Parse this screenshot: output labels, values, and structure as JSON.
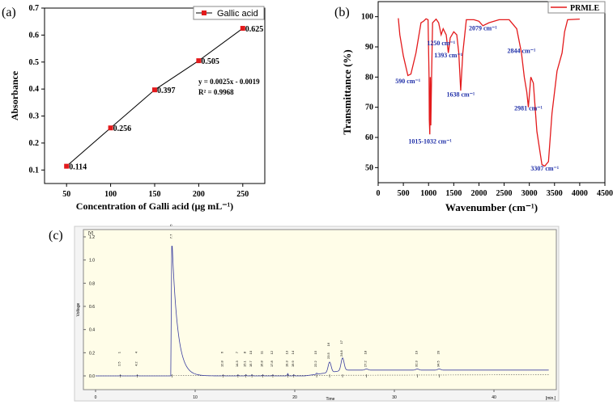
{
  "chart_data": [
    {
      "panel": "(a)",
      "type": "line",
      "xlabel": "Concentration of Galli acid (μg mL⁻¹)",
      "ylabel": "Absorbance",
      "x": [
        50,
        100,
        150,
        200,
        250
      ],
      "y": [
        0.114,
        0.256,
        0.397,
        0.505,
        0.625
      ],
      "data_labels": [
        "0.114",
        "0.256",
        "0.397",
        "0.505",
        "0.625"
      ],
      "series_name": "Gallic acid",
      "color": "#e31a1c",
      "legend": "top-right",
      "equation": "y = 0.0025x - 0.0019",
      "r2": "R² = 0.9968",
      "xlim": [
        25,
        275
      ],
      "ylim": [
        0.05,
        0.7
      ],
      "xticks": [
        "50",
        "100",
        "150",
        "200",
        "250"
      ],
      "yticks": [
        "0.1",
        "0.2",
        "0.3",
        "0.4",
        "0.5",
        "0.6",
        "0.7"
      ]
    },
    {
      "panel": "(b)",
      "type": "line",
      "xlabel": "Wavenumber (cm⁻¹)",
      "ylabel": "Transmittance (%)",
      "series_name": "PRMLE",
      "color": "#e31a1c",
      "legend": "top-right",
      "xlim": [
        0,
        4500
      ],
      "ylim": [
        45,
        105
      ],
      "xticks": [
        "0",
        "500",
        "1000",
        "1500",
        "2000",
        "2500",
        "3000",
        "3500",
        "4000",
        "4500"
      ],
      "yticks": [
        "50",
        "60",
        "70",
        "80",
        "90",
        "100"
      ],
      "points": [
        [
          400,
          99.5
        ],
        [
          430,
          94
        ],
        [
          500,
          87
        ],
        [
          590,
          80.5
        ],
        [
          650,
          81
        ],
        [
          750,
          88
        ],
        [
          850,
          98
        ],
        [
          900,
          98.5
        ],
        [
          950,
          99.3
        ],
        [
          990,
          99
        ],
        [
          1010,
          80
        ],
        [
          1015,
          66
        ],
        [
          1025,
          61
        ],
        [
          1035,
          80
        ],
        [
          1045,
          64
        ],
        [
          1060,
          80
        ],
        [
          1080,
          98
        ],
        [
          1150,
          99.2
        ],
        [
          1200,
          98
        ],
        [
          1250,
          94
        ],
        [
          1290,
          96
        ],
        [
          1350,
          94
        ],
        [
          1393,
          88
        ],
        [
          1430,
          93
        ],
        [
          1500,
          95
        ],
        [
          1560,
          94
        ],
        [
          1600,
          88
        ],
        [
          1638,
          75.5
        ],
        [
          1680,
          88
        ],
        [
          1750,
          99
        ],
        [
          1900,
          99
        ],
        [
          2000,
          98.5
        ],
        [
          2079,
          97
        ],
        [
          2200,
          98
        ],
        [
          2400,
          99
        ],
        [
          2600,
          99
        ],
        [
          2750,
          96
        ],
        [
          2844,
          88
        ],
        [
          2900,
          80
        ],
        [
          2950,
          75
        ],
        [
          2981,
          70
        ],
        [
          3030,
          80
        ],
        [
          3080,
          78
        ],
        [
          3150,
          62
        ],
        [
          3250,
          51
        ],
        [
          3307,
          50.5
        ],
        [
          3380,
          52
        ],
        [
          3450,
          68
        ],
        [
          3550,
          82
        ],
        [
          3650,
          88
        ],
        [
          3700,
          95
        ],
        [
          3760,
          99
        ],
        [
          4000,
          99.2
        ]
      ],
      "annotations": [
        {
          "text": "590 cm⁻¹",
          "x": 590,
          "y": 78
        },
        {
          "text": "1015-1032 cm⁻¹",
          "x": 1030,
          "y": 58
        },
        {
          "text": "1250 cm⁻¹",
          "x": 1250,
          "y": 90.5
        },
        {
          "text": "1393 cm⁻¹",
          "x": 1393,
          "y": 86.5
        },
        {
          "text": "1638 cm⁻¹",
          "x": 1638,
          "y": 73.5
        },
        {
          "text": "2079 cm⁻¹",
          "x": 2079,
          "y": 95.5
        },
        {
          "text": "2844 cm⁻¹",
          "x": 2844,
          "y": 88
        },
        {
          "text": "2981 cm⁻¹",
          "x": 2981,
          "y": 69
        },
        {
          "text": "3307 cm⁻¹",
          "x": 3307,
          "y": 49
        }
      ],
      "annotation_color": "#1f2fa8"
    },
    {
      "panel": "(c)",
      "type": "line",
      "xlabel": "Time",
      "ylabel": "Voltage",
      "yunit": "[V]",
      "xunit": "[min.]",
      "xlim": [
        -3,
        46
      ],
      "ylim": [
        -0.1,
        1.25
      ],
      "xticks": [
        "0",
        "10",
        "20",
        "30",
        "40"
      ],
      "yticks": [
        "0.0",
        "0.2",
        "0.4",
        "0.6",
        "0.8",
        "1.0",
        "1.2"
      ],
      "peaks": [
        {
          "rt": "2.5",
          "n": "1",
          "h": 0.005
        },
        {
          "rt": "4.2",
          "n": "4",
          "h": 0.005
        },
        {
          "rt": "7.7",
          "n": "5",
          "h": 1.12
        },
        {
          "rt": "12.8",
          "n": "6",
          "h": 0.005
        },
        {
          "rt": "14.3",
          "n": "7",
          "h": 0.008
        },
        {
          "rt": "15.1",
          "n": "8",
          "h": 0.01
        },
        {
          "rt": "15.7",
          "n": "10",
          "h": 0.01
        },
        {
          "rt": "16.8",
          "n": "11",
          "h": 0.008
        },
        {
          "rt": "17.8",
          "n": "12",
          "h": 0.008
        },
        {
          "rt": "19.3",
          "n": "13",
          "h": 0.02
        },
        {
          "rt": "19.9",
          "n": "14",
          "h": 0.01
        },
        {
          "rt": "22.2",
          "n": "15",
          "h": 0.01
        },
        {
          "rt": "23.5",
          "n": "16",
          "h": 0.09
        },
        {
          "rt": "24.8",
          "n": "17",
          "h": 0.11
        },
        {
          "rt": "27.2",
          "n": "18",
          "h": 0.01
        },
        {
          "rt": "32.3",
          "n": "19",
          "h": 0.01
        },
        {
          "rt": "34.5",
          "n": "20",
          "h": 0.01
        }
      ],
      "trace_color": "#3b3fa0",
      "background": "#fffde8"
    }
  ],
  "labels": {
    "a": "(a)",
    "b": "(b)",
    "c": "(c)"
  }
}
